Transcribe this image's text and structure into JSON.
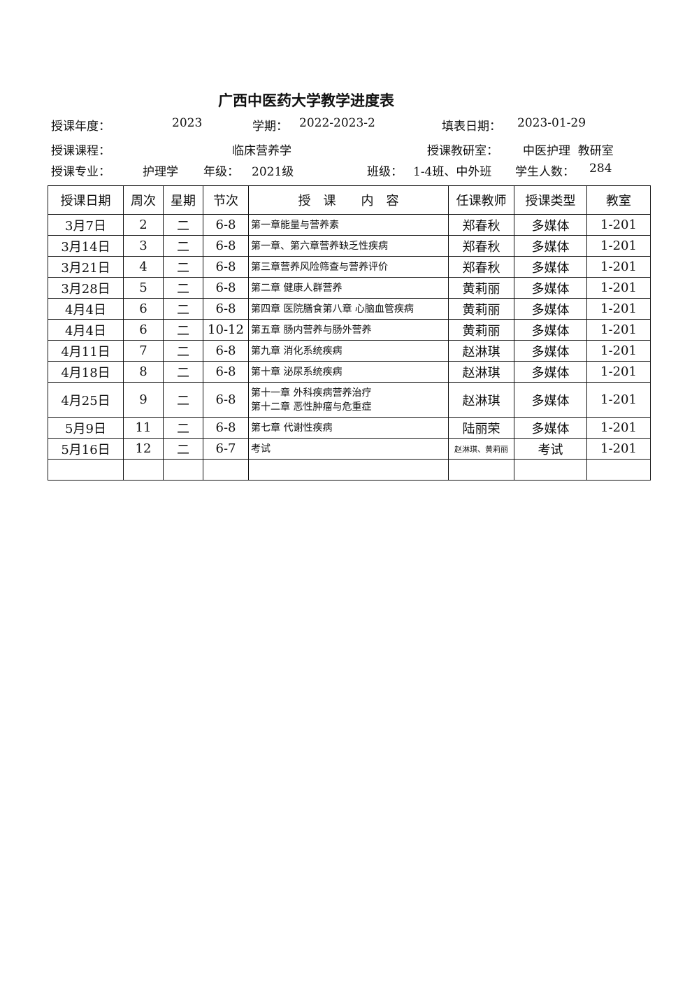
{
  "title": "广西中医药大学教学进度表",
  "meta": {
    "year_label": "授课年度：",
    "year": "2023",
    "term_label": "学期：",
    "term": "2022-2023-2",
    "fill_date_label": "填表日期：",
    "fill_date": "2023-01-29",
    "course_label": "授课课程：",
    "course": "临床营养学",
    "dept_label": "授课教研室：",
    "dept": "中医护理  教研室",
    "major_label": "授课专业：",
    "major": "护理学",
    "grade_label": "年级：",
    "grade": "2021级",
    "class_label": "班级：",
    "class": "1-4班、中外班",
    "students_label": "学生人数：",
    "students": "284"
  },
  "table": {
    "headers": [
      "授课日期",
      "周次",
      "星期",
      "节次",
      "授　课　　内　容",
      "任课教师",
      "授课类型",
      "教室"
    ],
    "rows": [
      [
        "3月7日",
        "2",
        "二",
        "6-8",
        "第一章能量与营养素",
        "郑春秋",
        "多媒体",
        "1-201"
      ],
      [
        "3月14日",
        "3",
        "二",
        "6-8",
        "第一章、第六章营养缺乏性疾病",
        "郑春秋",
        "多媒体",
        "1-201"
      ],
      [
        "3月21日",
        "4",
        "二",
        "6-8",
        "第三章营养风险筛查与营养评价",
        "郑春秋",
        "多媒体",
        "1-201"
      ],
      [
        "3月28日",
        "5",
        "二",
        "6-8",
        "第二章  健康人群营养",
        "黄莉丽",
        "多媒体",
        "1-201"
      ],
      [
        "4月4日",
        "6",
        "二",
        "6-8",
        "第四章  医院膳食第八章  心脑血管疾病",
        "黄莉丽",
        "多媒体",
        "1-201"
      ],
      [
        "4月4日",
        "6",
        "二",
        "10-12",
        "第五章  肠内营养与肠外营养",
        "黄莉丽",
        "多媒体",
        "1-201"
      ],
      [
        "4月11日",
        "7",
        "二",
        "6-8",
        "第九章    消化系统疾病",
        "赵淋琪",
        "多媒体",
        "1-201"
      ],
      [
        "4月18日",
        "8",
        "二",
        "6-8",
        "第十章  泌尿系统疾病",
        "赵淋琪",
        "多媒体",
        "1-201"
      ],
      [
        "4月25日",
        "9",
        "二",
        "6-8",
        "第十一章  外科疾病营养治疗\n第十二章  恶性肿瘤与危重症",
        "赵淋琪",
        "多媒体",
        "1-201"
      ],
      [
        "5月9日",
        "11",
        "二",
        "6-8",
        "第七章  代谢性疾病",
        "陆丽荣",
        "多媒体",
        "1-201"
      ],
      [
        "5月16日",
        "12",
        "二",
        "6-7",
        "考试",
        "赵淋琪、黄莉丽",
        "考试",
        "1-201"
      ],
      [
        "",
        "",
        "",
        "",
        "",
        "",
        "",
        ""
      ]
    ]
  }
}
